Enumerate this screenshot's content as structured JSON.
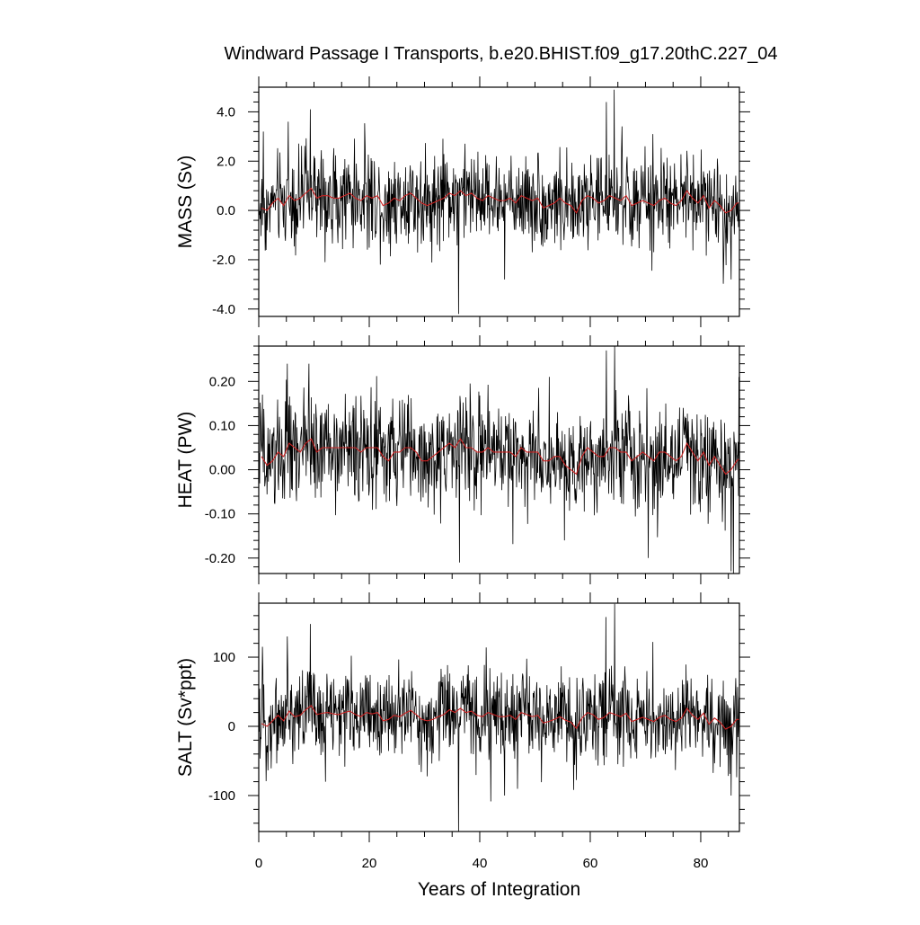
{
  "chart_data": {
    "type": "line",
    "title": "Windward Passage I Transports, b.e20.BHIST.f09_g17.20thC.227_04",
    "xlabel": "Years of Integration",
    "xlim": [
      0,
      87
    ],
    "xticks": [
      0,
      20,
      40,
      60,
      80
    ],
    "xtick_labels": [
      "0",
      "20",
      "40",
      "60",
      "80"
    ],
    "panels": [
      {
        "ylabel": "MASS (Sv)",
        "ylim": [
          -4.3,
          5.0
        ],
        "yticks": [
          -4.0,
          -2.0,
          0.0,
          2.0,
          4.0
        ],
        "ytick_labels": [
          "-4.0",
          "-2.0",
          "0.0",
          "2.0",
          "4.0"
        ],
        "monthly_color": "#000000",
        "smoothed_color": "#cc2222",
        "monthly_baseline": 0.35,
        "monthly_amplitude": 0.9,
        "annual": [
          0.1,
          0.0,
          0.3,
          0.5,
          0.2,
          0.6,
          0.4,
          0.5,
          0.7,
          0.9,
          0.5,
          0.6,
          0.6,
          0.5,
          0.5,
          0.6,
          0.7,
          0.5,
          0.4,
          0.6,
          0.5,
          0.6,
          0.2,
          0.3,
          0.5,
          0.4,
          0.6,
          0.7,
          0.5,
          0.3,
          0.2,
          0.3,
          0.4,
          0.5,
          0.7,
          0.6,
          0.8,
          0.6,
          0.7,
          0.5,
          0.4,
          0.6,
          0.5,
          0.4,
          0.4,
          0.5,
          0.3,
          0.6,
          0.5,
          0.4,
          0.5,
          0.1,
          0.2,
          0.3,
          0.5,
          0.3,
          0.2,
          -0.1,
          0.4,
          0.6,
          0.5,
          0.3,
          0.4,
          0.6,
          0.5,
          0.4,
          0.6,
          0.2,
          0.3,
          0.4,
          0.3,
          0.2,
          0.4,
          0.5,
          0.3,
          0.2,
          0.4,
          0.8,
          0.5,
          0.3,
          0.6,
          0.1,
          0.4,
          0.2,
          -0.1,
          0.0,
          0.3,
          0.3
        ],
        "extremes": [
          [
            0.8,
            3.2
          ],
          [
            5.3,
            3.6
          ],
          [
            9.3,
            4.1
          ],
          [
            36.2,
            -4.2
          ],
          [
            64.3,
            4.9
          ],
          [
            62.9,
            4.4
          ],
          [
            44.5,
            -2.8
          ],
          [
            85.5,
            -2.8
          ],
          [
            12.0,
            -2.1
          ],
          [
            71.3,
            3.1
          ]
        ]
      },
      {
        "ylabel": "HEAT (PW)",
        "ylim": [
          -0.235,
          0.28
        ],
        "yticks": [
          -0.2,
          -0.1,
          0.0,
          0.1,
          0.2
        ],
        "ytick_labels": [
          "-0.20",
          "-0.10",
          "0.00",
          "0.10",
          "0.20"
        ],
        "monthly_color": "#000000",
        "smoothed_color": "#cc2222",
        "monthly_baseline": 0.035,
        "monthly_amplitude": 0.058,
        "annual": [
          0.03,
          0.01,
          0.02,
          0.04,
          0.03,
          0.06,
          0.05,
          0.04,
          0.06,
          0.07,
          0.04,
          0.05,
          0.05,
          0.05,
          0.05,
          0.05,
          0.05,
          0.05,
          0.04,
          0.05,
          0.05,
          0.05,
          0.03,
          0.02,
          0.04,
          0.04,
          0.05,
          0.05,
          0.04,
          0.02,
          0.02,
          0.03,
          0.04,
          0.05,
          0.06,
          0.05,
          0.07,
          0.05,
          0.05,
          0.04,
          0.04,
          0.05,
          0.04,
          0.04,
          0.04,
          0.04,
          0.03,
          0.05,
          0.04,
          0.04,
          0.04,
          0.02,
          0.02,
          0.03,
          0.03,
          0.01,
          0.0,
          -0.01,
          0.03,
          0.05,
          0.04,
          0.03,
          0.03,
          0.05,
          0.05,
          0.04,
          0.04,
          0.02,
          0.03,
          0.04,
          0.03,
          0.02,
          0.04,
          0.04,
          0.03,
          0.02,
          0.03,
          0.06,
          0.04,
          0.02,
          0.04,
          0.01,
          0.03,
          0.01,
          -0.01,
          0.0,
          0.02,
          0.03
        ],
        "extremes": [
          [
            0.7,
            0.17
          ],
          [
            5.2,
            0.24
          ],
          [
            9.1,
            0.24
          ],
          [
            36.3,
            -0.21
          ],
          [
            62.9,
            0.27
          ],
          [
            64.4,
            0.28
          ],
          [
            55.3,
            -0.16
          ],
          [
            70.5,
            -0.2
          ],
          [
            85.5,
            -0.23
          ],
          [
            86.9,
            0.21
          ]
        ]
      },
      {
        "ylabel": "SALT (Sv*ppt)",
        "ylim": [
          -152,
          178
        ],
        "yticks": [
          -100,
          0,
          100
        ],
        "ytick_labels": [
          "-100",
          "0",
          "100"
        ],
        "monthly_color": "#000000",
        "smoothed_color": "#cc2222",
        "monthly_baseline": 12,
        "monthly_amplitude": 32,
        "annual": [
          4,
          0,
          8,
          16,
          8,
          22,
          14,
          16,
          24,
          30,
          17,
          19,
          20,
          18,
          17,
          20,
          22,
          17,
          14,
          20,
          18,
          20,
          8,
          10,
          16,
          14,
          19,
          23,
          17,
          10,
          8,
          10,
          14,
          17,
          24,
          20,
          26,
          20,
          22,
          16,
          14,
          20,
          17,
          14,
          14,
          16,
          10,
          20,
          17,
          14,
          16,
          5,
          7,
          10,
          14,
          9,
          6,
          -3,
          12,
          20,
          17,
          10,
          13,
          20,
          17,
          14,
          19,
          7,
          10,
          13,
          10,
          7,
          13,
          16,
          10,
          7,
          12,
          26,
          16,
          10,
          19,
          3,
          12,
          6,
          -4,
          0,
          10,
          10
        ],
        "extremes": [
          [
            0.7,
            115
          ],
          [
            5.2,
            130
          ],
          [
            9.3,
            148
          ],
          [
            36.2,
            -152
          ],
          [
            64.4,
            177
          ],
          [
            62.8,
            158
          ],
          [
            44.5,
            -100
          ],
          [
            85.5,
            -100
          ],
          [
            12.1,
            -80
          ],
          [
            71.3,
            122
          ]
        ]
      }
    ]
  }
}
